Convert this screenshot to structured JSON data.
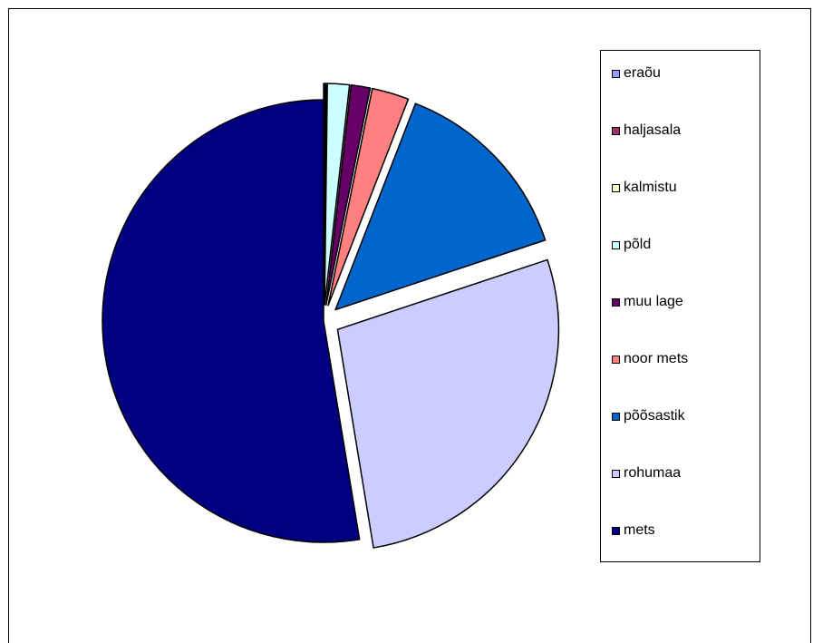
{
  "chart_data": {
    "type": "pie",
    "title": "",
    "legend_position": "right",
    "slices": [
      {
        "name": "eraõu",
        "value": 0.1,
        "color": "#9999FF",
        "exploded": true
      },
      {
        "name": "haljasala",
        "value": 0.05,
        "color": "#993366",
        "exploded": true
      },
      {
        "name": "kalmistu",
        "value": 0.05,
        "color": "#FFFFCC",
        "exploded": true
      },
      {
        "name": "põld",
        "value": 1.6,
        "color": "#CCFFFF",
        "exploded": true
      },
      {
        "name": "muu lage",
        "value": 1.4,
        "color": "#660066",
        "exploded": true
      },
      {
        "name": "noor mets",
        "value": 2.7,
        "color": "#FF8080",
        "exploded": true
      },
      {
        "name": "põõsastik",
        "value": 14.0,
        "color": "#0066CC",
        "exploded": true
      },
      {
        "name": "rohumaa",
        "value": 27.5,
        "color": "#CCCCFF",
        "exploded": true
      },
      {
        "name": "mets",
        "value": 52.6,
        "color": "#000080",
        "exploded": false
      }
    ]
  }
}
